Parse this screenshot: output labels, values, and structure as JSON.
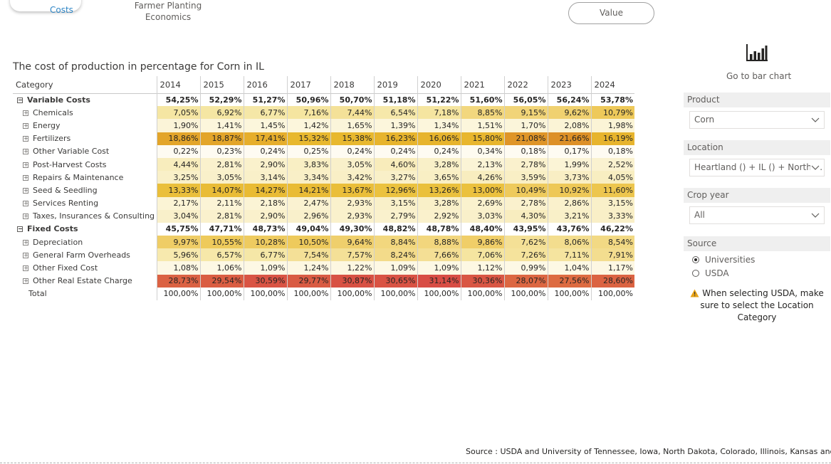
{
  "nav": {
    "costs_label": "Costs",
    "farmer_line1": "Farmer Planting",
    "farmer_line2": "Economics",
    "value_button": "Value"
  },
  "matrix": {
    "title": "The cost of production in percentage for Corn in IL",
    "category_header": "Category",
    "years": [
      "2014",
      "2015",
      "2016",
      "2017",
      "2018",
      "2019",
      "2020",
      "2021",
      "2022",
      "2023",
      "2024"
    ],
    "rows": [
      {
        "label": "Variable Costs",
        "level": "group",
        "expander": "⊟",
        "values": [
          "54,25%",
          "52,29%",
          "51,27%",
          "50,96%",
          "50,70%",
          "51,18%",
          "51,22%",
          "51,60%",
          "56,05%",
          "56,24%",
          "53,78%"
        ]
      },
      {
        "label": "Chemicals",
        "level": "child",
        "expander": "⊞",
        "values": [
          "7,05%",
          "6,92%",
          "6,77%",
          "7,16%",
          "7,44%",
          "6,54%",
          "7,18%",
          "8,85%",
          "9,15%",
          "9,62%",
          "10,79%"
        ],
        "colors": [
          "#f5e6a3",
          "#f5e6a3",
          "#f5e7a7",
          "#f5e5a0",
          "#f4e198",
          "#f6e8aa",
          "#f5e5a0",
          "#f2d77e",
          "#f1d478",
          "#f0d170",
          "#eec95a"
        ]
      },
      {
        "label": "Energy",
        "level": "child",
        "expander": "⊞",
        "values": [
          "1,90%",
          "1,41%",
          "1,45%",
          "1,42%",
          "1,65%",
          "1,39%",
          "1,34%",
          "1,51%",
          "1,70%",
          "2,08%",
          "1,98%"
        ],
        "colors": [
          "#fbf4d8",
          "#fcf6dc",
          "#fcf6dc",
          "#fcf6dc",
          "#fbf5da",
          "#fcf6dc",
          "#fcf6dc",
          "#fcf6dc",
          "#fbf5da",
          "#fbf4d6",
          "#fbf4d6"
        ]
      },
      {
        "label": "Fertilizers",
        "level": "child",
        "expander": "⊞",
        "values": [
          "18,86%",
          "18,87%",
          "17,41%",
          "15,32%",
          "15,38%",
          "16,23%",
          "16,06%",
          "15,80%",
          "21,08%",
          "21,66%",
          "16,19%"
        ],
        "colors": [
          "#e3a52a",
          "#e3a52a",
          "#e6ae2c",
          "#e8b82e",
          "#e8b82e",
          "#e7b42d",
          "#e7b42d",
          "#e8b62e",
          "#df9528",
          "#dd9027",
          "#e7b42d"
        ]
      },
      {
        "label": "Other Variable Cost",
        "level": "child",
        "expander": "⊞",
        "values": [
          "0,22%",
          "0,23%",
          "0,24%",
          "0,25%",
          "0,24%",
          "0,24%",
          "0,24%",
          "0,34%",
          "0,18%",
          "0,17%",
          "0,18%"
        ],
        "colors": [
          "#fefbf2",
          "#fefbf2",
          "#fefbf2",
          "#fefbf2",
          "#fefbf2",
          "#fefbf2",
          "#fefbf2",
          "#fefbf0",
          "#fefbf2",
          "#fefbf2",
          "#fefbf2"
        ]
      },
      {
        "label": "Post-Harvest Costs",
        "level": "child",
        "expander": "⊞",
        "values": [
          "4,44%",
          "2,81%",
          "2,90%",
          "3,83%",
          "3,05%",
          "4,60%",
          "3,28%",
          "2,13%",
          "2,78%",
          "1,99%",
          "2,52%"
        ],
        "colors": [
          "#f8edbd",
          "#faf1cd",
          "#faf1cc",
          "#f9efc4",
          "#f9f0ca",
          "#f8ecbb",
          "#f9f0c8",
          "#fbf4d6",
          "#faf1cd",
          "#fbf4d6",
          "#faf2d0"
        ]
      },
      {
        "label": "Repairs & Maintenance",
        "level": "child",
        "expander": "⊞",
        "values": [
          "3,25%",
          "3,05%",
          "3,14%",
          "3,34%",
          "3,42%",
          "3,27%",
          "3,65%",
          "4,26%",
          "3,59%",
          "3,73%",
          "4,05%"
        ],
        "colors": [
          "#f9f0c8",
          "#f9f0ca",
          "#f9f0c9",
          "#f9efc7",
          "#f9efc6",
          "#f9f0c8",
          "#f9efc4",
          "#f8edbf",
          "#f9efc5",
          "#f9eec4",
          "#f8eec1"
        ]
      },
      {
        "label": "Seed & Seedling",
        "level": "child",
        "expander": "⊞",
        "values": [
          "13,33%",
          "14,07%",
          "14,27%",
          "14,21%",
          "13,67%",
          "12,96%",
          "13,26%",
          "13,00%",
          "10,49%",
          "10,92%",
          "11,60%"
        ],
        "colors": [
          "#eabf3b",
          "#e9bc36",
          "#e9bb34",
          "#e9bb35",
          "#eabe39",
          "#ebc23f",
          "#eac03c",
          "#ebc13e",
          "#eeca5c",
          "#eec857",
          "#edc64e"
        ]
      },
      {
        "label": "Services Renting",
        "level": "child",
        "expander": "⊞",
        "values": [
          "2,17%",
          "2,11%",
          "2,18%",
          "2,47%",
          "2,93%",
          "3,15%",
          "3,28%",
          "2,69%",
          "2,78%",
          "2,86%",
          "3,15%"
        ],
        "colors": [
          "#fbf4d5",
          "#fbf4d6",
          "#fbf4d5",
          "#faf2d1",
          "#faf1cc",
          "#f9f0c9",
          "#f9f0c8",
          "#faf2ce",
          "#faf1cd",
          "#faf1cc",
          "#f9f0c9"
        ]
      },
      {
        "label": "Taxes, Insurances & Consulting",
        "level": "child",
        "expander": "⊞",
        "values": [
          "3,04%",
          "2,81%",
          "2,90%",
          "2,96%",
          "2,93%",
          "2,79%",
          "2,92%",
          "3,03%",
          "4,30%",
          "3,21%",
          "3,33%"
        ],
        "colors": [
          "#f9f0ca",
          "#faf1cd",
          "#faf1cc",
          "#f9f0cb",
          "#faf1cc",
          "#faf1cd",
          "#faf1cc",
          "#f9f0ca",
          "#f8edbf",
          "#f9f0c8",
          "#f9efc7"
        ]
      },
      {
        "label": "Fixed Costs",
        "level": "group",
        "expander": "⊟",
        "values": [
          "45,75%",
          "47,71%",
          "48,73%",
          "49,04%",
          "49,30%",
          "48,82%",
          "48,78%",
          "48,40%",
          "43,95%",
          "43,76%",
          "46,22%"
        ]
      },
      {
        "label": "Depreciation",
        "level": "child",
        "expander": "⊞",
        "values": [
          "9,97%",
          "10,55%",
          "10,28%",
          "10,50%",
          "9,64%",
          "8,84%",
          "8,88%",
          "9,86%",
          "7,62%",
          "8,06%",
          "8,54%"
        ],
        "colors": [
          "#efcd66",
          "#eeca5b",
          "#eecb60",
          "#eeca5c",
          "#efcf6c",
          "#f2d77e",
          "#f2d67d",
          "#f0ce68",
          "#f4e096",
          "#f3dd8e",
          "#f2d984"
        ]
      },
      {
        "label": "General Farm Overheads",
        "level": "child",
        "expander": "⊞",
        "values": [
          "5,96%",
          "6,57%",
          "6,77%",
          "7,54%",
          "7,57%",
          "8,24%",
          "7,66%",
          "7,06%",
          "7,26%",
          "7,11%",
          "7,91%"
        ],
        "colors": [
          "#f7e9ae",
          "#f6e8a9",
          "#f5e7a7",
          "#f4e097",
          "#f4e097",
          "#f3db8a",
          "#f4df95",
          "#f5e5a0",
          "#f5e39c",
          "#f5e49f",
          "#f3dd8f"
        ]
      },
      {
        "label": "Other Fixed Cost",
        "level": "child",
        "expander": "⊞",
        "values": [
          "1,08%",
          "1,06%",
          "1,09%",
          "1,24%",
          "1,22%",
          "1,09%",
          "1,09%",
          "1,12%",
          "0,99%",
          "1,04%",
          "1,17%"
        ],
        "colors": [
          "#fdf8e4",
          "#fdf8e4",
          "#fdf8e4",
          "#fdf7e1",
          "#fdf7e1",
          "#fdf8e4",
          "#fdf8e4",
          "#fdf8e3",
          "#fdf8e5",
          "#fdf8e4",
          "#fdf7e2"
        ]
      },
      {
        "label": "Other Real Estate Charge",
        "level": "child",
        "expander": "⊞",
        "values": [
          "28,73%",
          "29,54%",
          "30,59%",
          "29,77%",
          "30,87%",
          "30,65%",
          "31,14%",
          "30,36%",
          "28,07%",
          "27,56%",
          "28,60%"
        ],
        "colors": [
          "#db6243",
          "#da5d42",
          "#d95444",
          "#d95b43",
          "#d85144",
          "#d95344",
          "#d84d45",
          "#d95644",
          "#dc6742",
          "#dd6b41",
          "#db6342"
        ]
      },
      {
        "label": "Total",
        "level": "total",
        "expander": "",
        "values": [
          "100,00%",
          "100,00%",
          "100,00%",
          "100,00%",
          "100,00%",
          "100,00%",
          "100,00%",
          "100,00%",
          "100,00%",
          "100,00%",
          "100,00%"
        ]
      }
    ]
  },
  "barchart": {
    "label": "Go to bar chart",
    "icon": "bar-chart-icon"
  },
  "slicers": {
    "product": {
      "header": "Product",
      "value": "Corn"
    },
    "location": {
      "header": "Location",
      "value": "Heartland () + IL () + North ..."
    },
    "crop_year": {
      "header": "Crop year",
      "value": "All"
    },
    "source": {
      "header": "Source",
      "options": [
        {
          "label": "Universities",
          "selected": true
        },
        {
          "label": "USDA",
          "selected": false
        }
      ]
    }
  },
  "note": {
    "text": "When selecting USDA, make sure to select the Location Category",
    "icon": "warning-icon"
  },
  "footer": {
    "source": "Source : USDA and University of Tennessee, Iowa, North Dakota, Colorado, Illinois, Kansas and Ohio"
  }
}
